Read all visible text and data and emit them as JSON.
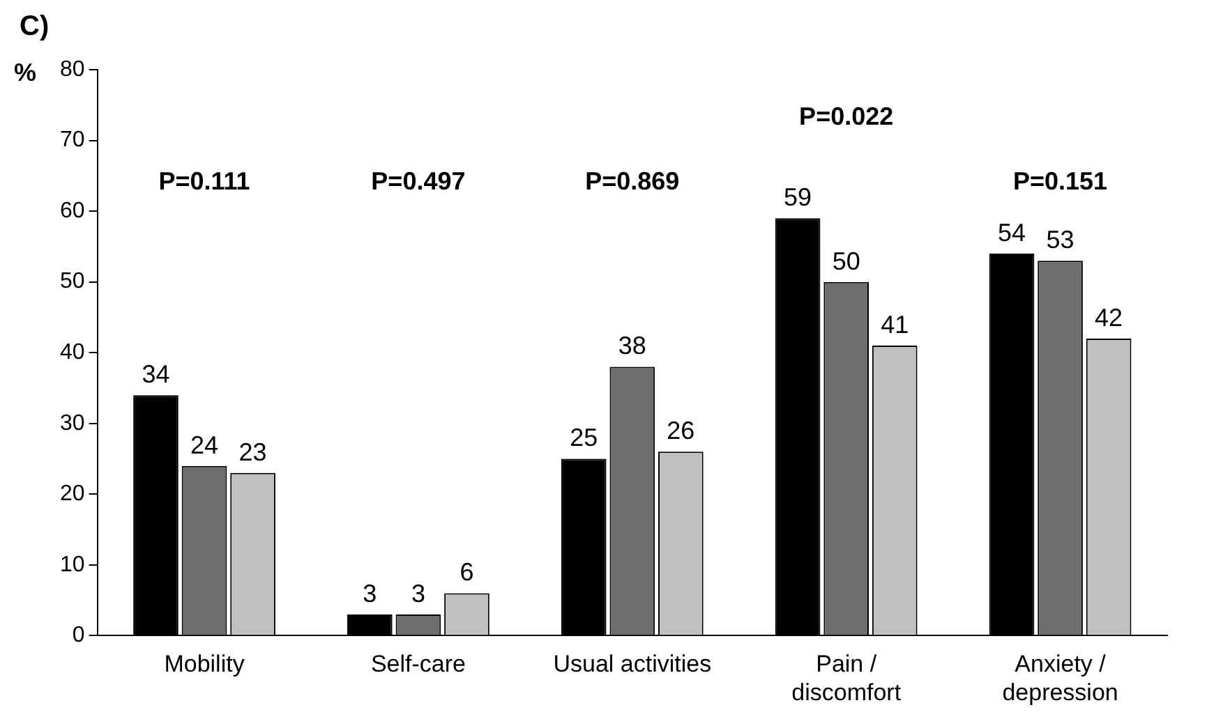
{
  "chart_data": {
    "type": "bar",
    "title": "C)",
    "ylabel": "%",
    "categories": [
      "Mobility",
      "Self-care",
      "Usual activities",
      "Pain / discomfort",
      "Anxiety / depression"
    ],
    "series": [
      {
        "color": "#000000",
        "values": [
          34,
          3,
          25,
          59,
          54
        ]
      },
      {
        "color": "#6e6e6e",
        "values": [
          24,
          3,
          38,
          50,
          53
        ]
      },
      {
        "color": "#c0c0c0",
        "values": [
          23,
          6,
          26,
          41,
          42
        ]
      }
    ],
    "ylim": [
      0,
      80
    ],
    "yticks": [
      0,
      10,
      20,
      30,
      40,
      50,
      60,
      70,
      80
    ],
    "grid": false,
    "legend": false,
    "data_labels": true,
    "annotations": [
      "P=0.111",
      "P=0.497",
      "P=0.869",
      "P=0.022",
      "P=0.151"
    ]
  }
}
